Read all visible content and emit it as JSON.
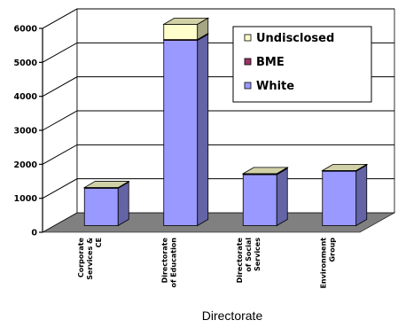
{
  "chart_data": {
    "type": "bar",
    "stacked": true,
    "three_d": true,
    "xlabel": "Directorate",
    "ylabel": "",
    "ylim": [
      0,
      6000
    ],
    "yticks": [
      0,
      1000,
      2000,
      3000,
      4000,
      5000,
      6000
    ],
    "grid": true,
    "legend_position": "top-right",
    "categories": [
      [
        "Corporate",
        "Services &",
        "CE"
      ],
      [
        "Directorate",
        "of Education"
      ],
      [
        "Directorate",
        "of Social",
        "Services"
      ],
      [
        "Environment",
        "Group"
      ]
    ],
    "series": [
      {
        "name": "White",
        "color": "#9999ff",
        "values": [
          1100,
          5450,
          1500,
          1600
        ]
      },
      {
        "name": "BME",
        "color": "#993366",
        "values": [
          10,
          25,
          15,
          10
        ]
      },
      {
        "name": "Undisclosed",
        "color": "#ffffcc",
        "values": [
          10,
          450,
          15,
          10
        ]
      }
    ],
    "legend_order": [
      "Undisclosed",
      "BME",
      "White"
    ],
    "floor_color": "#808080"
  }
}
